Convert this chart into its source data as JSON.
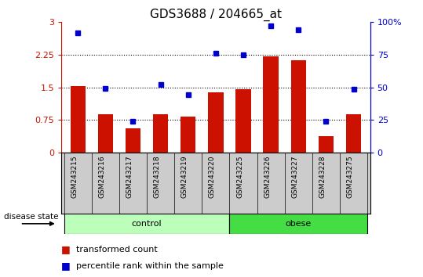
{
  "title": "GDS3688 / 204665_at",
  "samples": [
    "GSM243215",
    "GSM243216",
    "GSM243217",
    "GSM243218",
    "GSM243219",
    "GSM243220",
    "GSM243225",
    "GSM243226",
    "GSM243227",
    "GSM243228",
    "GSM243275"
  ],
  "transformed_count": [
    1.52,
    0.88,
    0.55,
    0.88,
    0.82,
    1.38,
    1.45,
    2.22,
    2.12,
    0.38,
    0.88
  ],
  "percentile_rank": [
    2.75,
    1.47,
    0.72,
    1.57,
    1.33,
    2.28,
    2.25,
    2.92,
    2.82,
    0.72,
    1.45
  ],
  "bar_color": "#cc1100",
  "dot_color": "#0000cc",
  "left_yticks": [
    0,
    0.75,
    1.5,
    2.25,
    3.0
  ],
  "left_yticklabels": [
    "0",
    "0.75",
    "1.5",
    "2.25",
    "3"
  ],
  "right_yticks": [
    0,
    0.75,
    1.5,
    2.25,
    3.0
  ],
  "right_yticklabels": [
    "0",
    "25",
    "50",
    "75",
    "100%"
  ],
  "ylim": [
    0,
    3.0
  ],
  "control_samples": [
    "GSM243215",
    "GSM243216",
    "GSM243217",
    "GSM243218",
    "GSM243219",
    "GSM243220"
  ],
  "obese_samples": [
    "GSM243225",
    "GSM243226",
    "GSM243227",
    "GSM243228",
    "GSM243275"
  ],
  "control_color": "#bbffbb",
  "obese_color": "#44dd44",
  "legend_label_bar": "transformed count",
  "legend_label_dot": "percentile rank within the sample",
  "disease_state_label": "disease state",
  "control_label": "control",
  "obese_label": "obese",
  "background_color": "#ffffff",
  "tick_area_color": "#cccccc",
  "title_fontsize": 11,
  "axis_fontsize": 8,
  "legend_fontsize": 8
}
